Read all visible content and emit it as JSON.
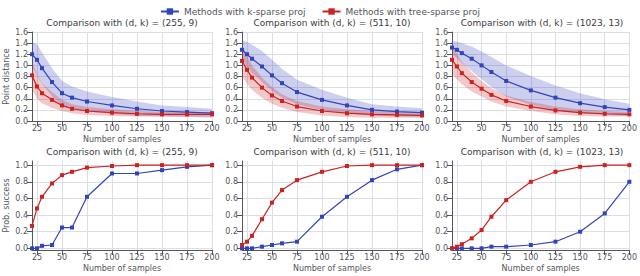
{
  "chart_data": [
    {
      "type": "line",
      "title": "Comparison with (d, k) = (255, 9)",
      "xlabel": "Number of samples",
      "ylabel": "Point distance",
      "x": [
        20,
        25,
        30,
        40,
        50,
        60,
        75,
        100,
        125,
        150,
        175,
        200
      ],
      "xlim": [
        20,
        200
      ],
      "xticks": [
        25,
        50,
        75,
        100,
        125,
        150,
        175,
        200
      ],
      "ylim": [
        0,
        1.6
      ],
      "yticks": [
        {
          "value": 0,
          "label": "0.0"
        },
        0.2,
        0.4,
        0.6,
        0.8,
        {
          "value": 1,
          "label": "1.0"
        },
        1.2,
        1.4,
        1.6
      ],
      "grid": true,
      "legend": "top",
      "marker": "square",
      "series": [
        {
          "name": "Methods with k-sparse proj",
          "color": "#3344bb",
          "values": [
            1.2,
            1.1,
            0.95,
            0.7,
            0.5,
            0.42,
            0.35,
            0.28,
            0.22,
            0.18,
            0.16,
            0.14
          ],
          "std": [
            0.22,
            0.28,
            0.28,
            0.25,
            0.22,
            0.2,
            0.18,
            0.15,
            0.13,
            0.1,
            0.09,
            0.08
          ]
        },
        {
          "name": "Methods with tree-sparse proj",
          "color": "#cc2222",
          "values": [
            0.82,
            0.62,
            0.5,
            0.38,
            0.28,
            0.22,
            0.18,
            0.15,
            0.13,
            0.12,
            0.12,
            0.12
          ],
          "std": [
            0.25,
            0.22,
            0.18,
            0.14,
            0.1,
            0.08,
            0.07,
            0.06,
            0.05,
            0.04,
            0.04,
            0.04
          ]
        }
      ]
    },
    {
      "type": "line",
      "title": "Comparison with (d, k) = (511, 10)",
      "xlabel": "Number of samples",
      "x": [
        20,
        25,
        30,
        40,
        50,
        60,
        75,
        100,
        125,
        150,
        175,
        200
      ],
      "xlim": [
        20,
        200
      ],
      "xticks": [
        25,
        50,
        75,
        100,
        125,
        150,
        175,
        200
      ],
      "ylim": [
        0,
        1.6
      ],
      "yticks": [
        {
          "value": 0,
          "label": "0.0"
        },
        0.2,
        0.4,
        0.6,
        0.8,
        {
          "value": 1,
          "label": "1.0"
        },
        1.2,
        1.4,
        1.6
      ],
      "grid": true,
      "legend": "top",
      "marker": "square",
      "series": [
        {
          "name": "Methods with k-sparse proj",
          "color": "#3344bb",
          "values": [
            1.28,
            1.2,
            1.12,
            0.98,
            0.82,
            0.68,
            0.52,
            0.38,
            0.28,
            0.2,
            0.17,
            0.15
          ],
          "std": [
            0.18,
            0.22,
            0.25,
            0.28,
            0.28,
            0.26,
            0.22,
            0.18,
            0.14,
            0.1,
            0.09,
            0.08
          ]
        },
        {
          "name": "Methods with tree-sparse proj",
          "color": "#cc2222",
          "values": [
            1.08,
            0.92,
            0.78,
            0.6,
            0.46,
            0.36,
            0.26,
            0.18,
            0.14,
            0.12,
            0.11,
            0.1
          ],
          "std": [
            0.28,
            0.25,
            0.22,
            0.18,
            0.15,
            0.12,
            0.1,
            0.08,
            0.07,
            0.06,
            0.05,
            0.04
          ]
        }
      ]
    },
    {
      "type": "line",
      "title": "Comparison with (d, k) = (1023, 13)",
      "xlabel": "Number of samples",
      "x": [
        20,
        25,
        30,
        40,
        50,
        60,
        75,
        100,
        125,
        150,
        175,
        200
      ],
      "xlim": [
        20,
        200
      ],
      "xticks": [
        25,
        50,
        75,
        100,
        125,
        150,
        175,
        200
      ],
      "ylim": [
        0,
        1.6
      ],
      "yticks": [
        {
          "value": 0,
          "label": "0.0"
        },
        0.2,
        0.4,
        0.6,
        0.8,
        {
          "value": 1,
          "label": "1.0"
        },
        1.2,
        1.4,
        1.6
      ],
      "grid": true,
      "legend": "top",
      "marker": "square",
      "series": [
        {
          "name": "Methods with k-sparse proj",
          "color": "#3344bb",
          "values": [
            1.32,
            1.28,
            1.22,
            1.12,
            1.0,
            0.88,
            0.72,
            0.55,
            0.42,
            0.32,
            0.25,
            0.2
          ],
          "std": [
            0.12,
            0.15,
            0.18,
            0.22,
            0.25,
            0.27,
            0.28,
            0.26,
            0.22,
            0.18,
            0.14,
            0.11
          ]
        },
        {
          "name": "Methods with tree-sparse proj",
          "color": "#cc2222",
          "values": [
            1.1,
            0.98,
            0.86,
            0.7,
            0.58,
            0.47,
            0.36,
            0.26,
            0.19,
            0.15,
            0.13,
            0.12
          ],
          "std": [
            0.26,
            0.23,
            0.2,
            0.17,
            0.14,
            0.12,
            0.1,
            0.08,
            0.07,
            0.06,
            0.05,
            0.04
          ]
        }
      ]
    },
    {
      "type": "line",
      "title": "Comparison with (d, k) = (255, 9)",
      "xlabel": "Number of samples",
      "ylabel": "Prob. success",
      "x": [
        20,
        25,
        30,
        40,
        50,
        60,
        75,
        100,
        125,
        150,
        175,
        200
      ],
      "xlim": [
        20,
        200
      ],
      "xticks": [
        25,
        50,
        75,
        100,
        125,
        150,
        175,
        200
      ],
      "ylim": [
        -0.02,
        1.05
      ],
      "yticks": [
        {
          "value": 0,
          "label": "0.0"
        },
        0.2,
        0.4,
        0.6,
        0.8,
        {
          "value": 1,
          "label": "1.0"
        }
      ],
      "grid": true,
      "legend": "top",
      "marker": "square",
      "series": [
        {
          "name": "Methods with k-sparse proj",
          "color": "#3344bb",
          "values": [
            0.0,
            0.0,
            0.03,
            0.04,
            0.25,
            0.25,
            0.62,
            0.9,
            0.9,
            0.94,
            0.98,
            1.0
          ]
        },
        {
          "name": "Methods with tree-sparse proj",
          "color": "#cc2222",
          "values": [
            0.27,
            0.48,
            0.62,
            0.78,
            0.88,
            0.92,
            0.97,
            0.99,
            1.0,
            1.0,
            1.0,
            1.0
          ]
        }
      ]
    },
    {
      "type": "line",
      "title": "Comparison with (d, k) = (511, 10)",
      "xlabel": "Number of samples",
      "x": [
        20,
        25,
        30,
        40,
        50,
        60,
        75,
        100,
        125,
        150,
        175,
        200
      ],
      "xlim": [
        20,
        200
      ],
      "xticks": [
        25,
        50,
        75,
        100,
        125,
        150,
        175,
        200
      ],
      "ylim": [
        -0.02,
        1.05
      ],
      "yticks": [
        {
          "value": 0,
          "label": "0.0"
        },
        0.2,
        0.4,
        0.6,
        0.8,
        {
          "value": 1,
          "label": "1.0"
        }
      ],
      "grid": true,
      "legend": "top",
      "marker": "square",
      "series": [
        {
          "name": "Methods with k-sparse proj",
          "color": "#3344bb",
          "values": [
            0.0,
            0.0,
            0.0,
            0.02,
            0.04,
            0.06,
            0.08,
            0.38,
            0.62,
            0.82,
            0.95,
            1.0
          ]
        },
        {
          "name": "Methods with tree-sparse proj",
          "color": "#cc2222",
          "values": [
            0.04,
            0.08,
            0.15,
            0.35,
            0.55,
            0.7,
            0.82,
            0.92,
            0.99,
            1.0,
            1.0,
            1.0
          ]
        }
      ]
    },
    {
      "type": "line",
      "title": "Comparison with (d, k) = (1023, 13)",
      "xlabel": "Number of samples",
      "x": [
        20,
        25,
        30,
        40,
        50,
        60,
        75,
        100,
        125,
        150,
        175,
        200
      ],
      "xlim": [
        20,
        200
      ],
      "xticks": [
        25,
        50,
        75,
        100,
        125,
        150,
        175,
        200
      ],
      "ylim": [
        -0.02,
        1.05
      ],
      "yticks": [
        {
          "value": 0,
          "label": "0.0"
        },
        0.2,
        0.4,
        0.6,
        0.8,
        {
          "value": 1,
          "label": "1.0"
        }
      ],
      "grid": true,
      "legend": "top",
      "marker": "square",
      "series": [
        {
          "name": "Methods with k-sparse proj",
          "color": "#3344bb",
          "values": [
            0.0,
            0.0,
            0.0,
            0.0,
            0.0,
            0.02,
            0.02,
            0.04,
            0.08,
            0.2,
            0.42,
            0.8
          ]
        },
        {
          "name": "Methods with tree-sparse proj",
          "color": "#cc2222",
          "values": [
            0.0,
            0.02,
            0.05,
            0.12,
            0.22,
            0.38,
            0.58,
            0.8,
            0.92,
            0.98,
            1.0,
            1.0
          ]
        }
      ]
    }
  ]
}
